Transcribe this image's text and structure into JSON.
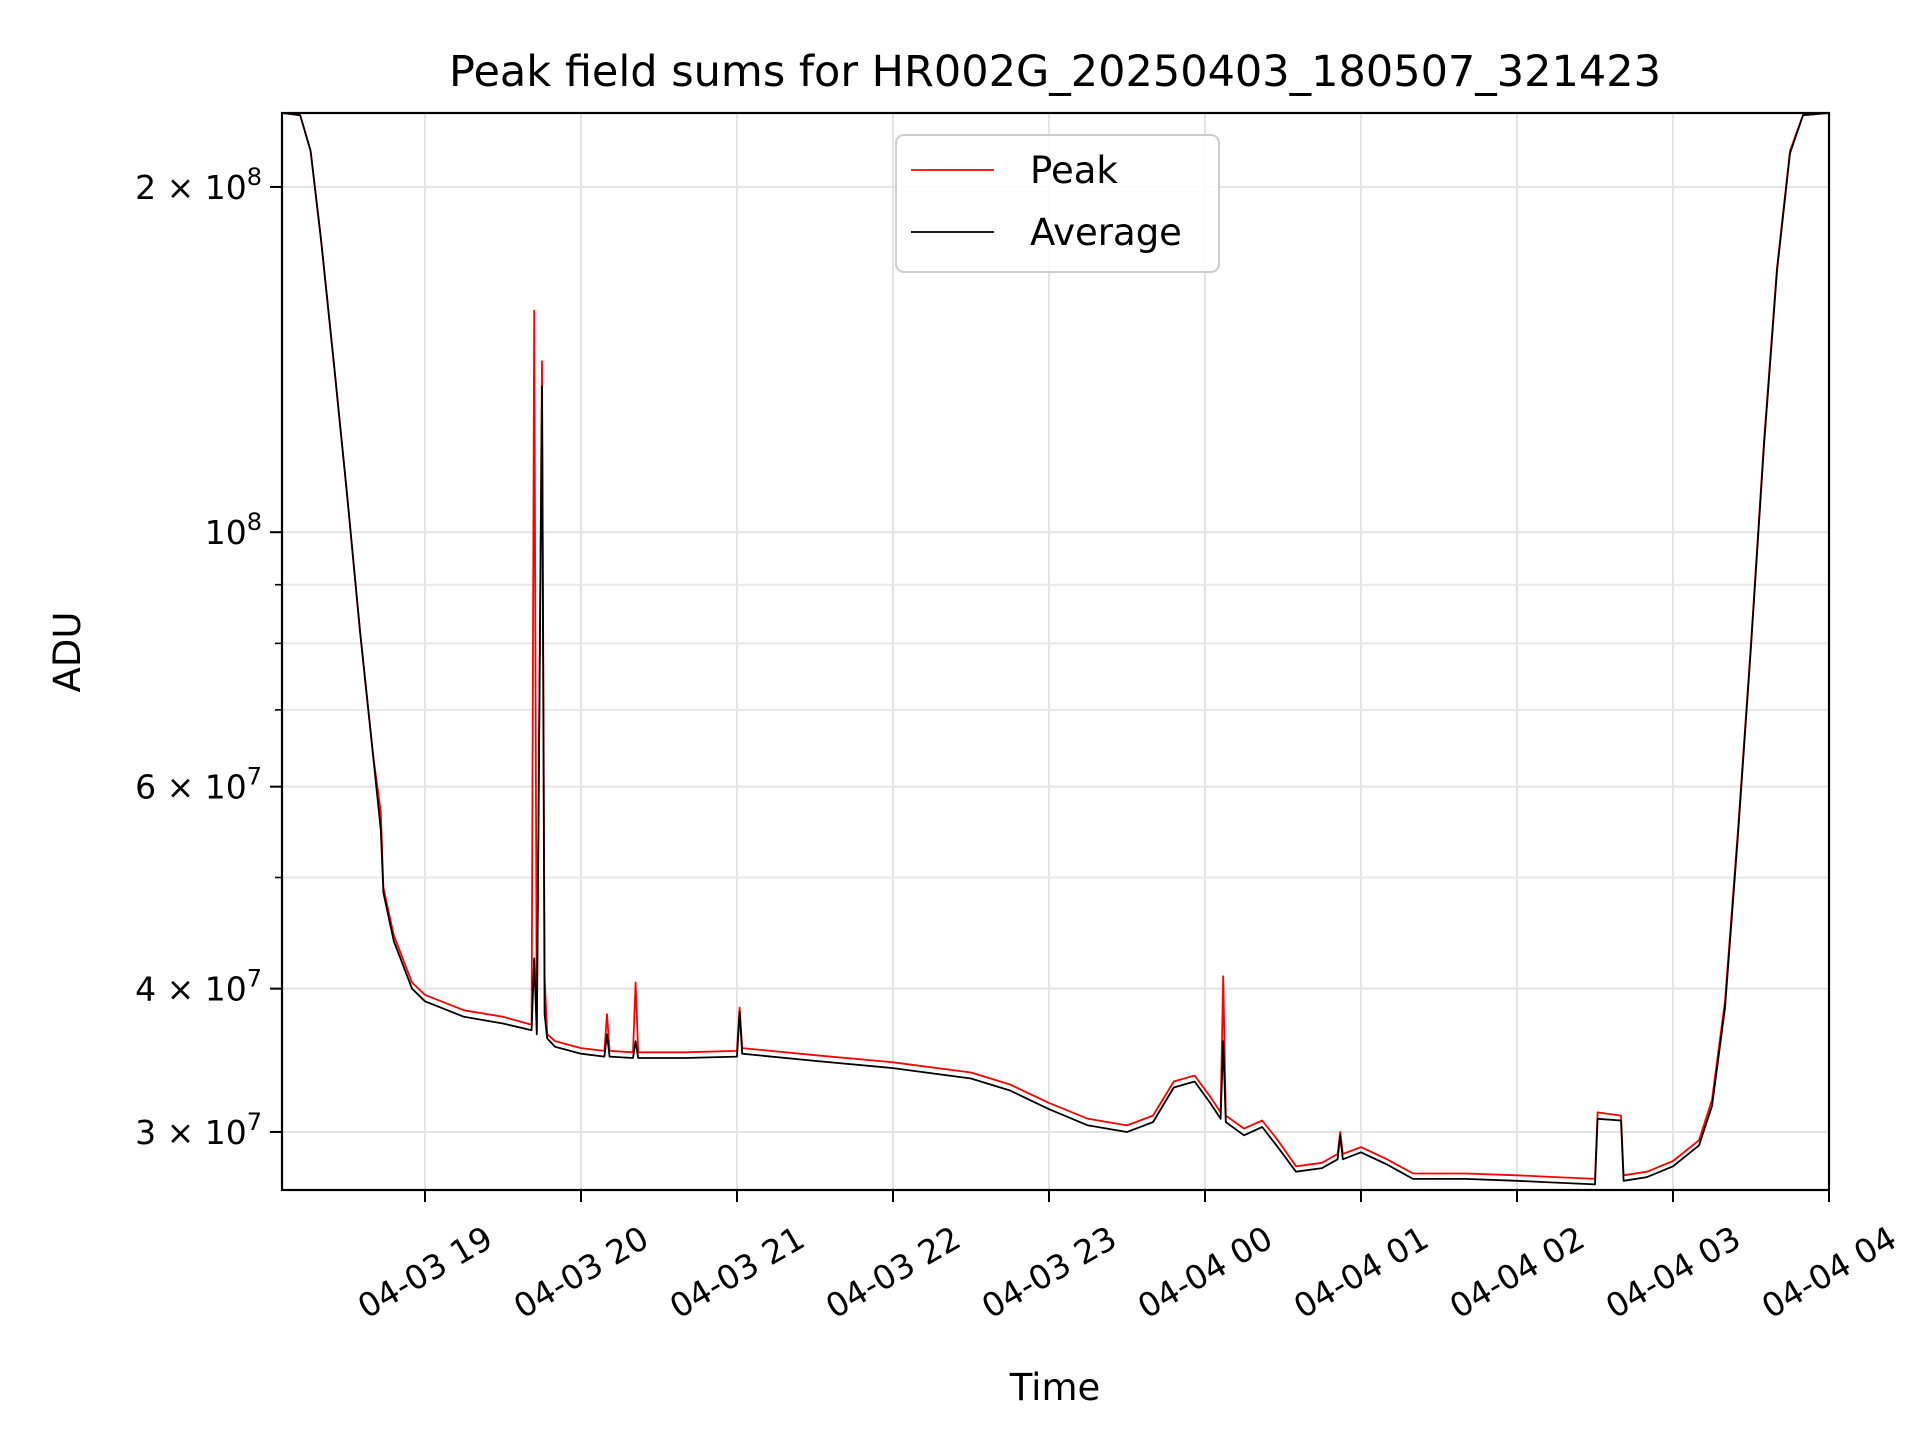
{
  "chart_data": {
    "type": "line",
    "title": "Peak field sums for HR002G_20250403_180507_321423",
    "xlabel": "Time",
    "ylabel": "ADU",
    "y_scale": "log",
    "ylim": [
      26700000,
      232000000
    ],
    "xlim": [
      "2025-04-03 18:05",
      "2025-04-04 04:00"
    ],
    "grid": true,
    "legend": {
      "position": "upper center",
      "entries": [
        "Peak",
        "Average"
      ]
    },
    "colors": {
      "Peak": "#ff0000",
      "Average": "#000000"
    },
    "x_ticks": [
      {
        "t": "2025-04-03 19:00",
        "label": "04-03 19"
      },
      {
        "t": "2025-04-03 20:00",
        "label": "04-03 20"
      },
      {
        "t": "2025-04-03 21:00",
        "label": "04-03 21"
      },
      {
        "t": "2025-04-03 22:00",
        "label": "04-03 22"
      },
      {
        "t": "2025-04-03 23:00",
        "label": "04-03 23"
      },
      {
        "t": "2025-04-04 00:00",
        "label": "04-04 00"
      },
      {
        "t": "2025-04-04 01:00",
        "label": "04-04 01"
      },
      {
        "t": "2025-04-04 02:00",
        "label": "04-04 02"
      },
      {
        "t": "2025-04-04 03:00",
        "label": "04-04 03"
      },
      {
        "t": "2025-04-04 04:00",
        "label": "04-04 04"
      }
    ],
    "y_ticks": [
      {
        "value": 30000000,
        "mant": "3",
        "exp": "7"
      },
      {
        "value": 40000000,
        "mant": "4",
        "exp": "7"
      },
      {
        "value": 60000000,
        "mant": "6",
        "exp": "7"
      },
      {
        "value": 100000000,
        "mant": "",
        "exp": "8"
      },
      {
        "value": 200000000,
        "mant": "2",
        "exp": "8"
      }
    ],
    "y_minor_ticks": [
      50000000,
      70000000,
      80000000,
      90000000
    ],
    "series": [
      {
        "name": "Peak",
        "points": [
          [
            "2025-04-03 18:05",
            232000000
          ],
          [
            "2025-04-03 18:12",
            231000000
          ],
          [
            "2025-04-03 18:16",
            215000000
          ],
          [
            "2025-04-03 18:20",
            180000000
          ],
          [
            "2025-04-03 18:25",
            140000000
          ],
          [
            "2025-04-03 18:30",
            108000000
          ],
          [
            "2025-04-03 18:35",
            82000000
          ],
          [
            "2025-04-03 18:40",
            64000000
          ],
          [
            "2025-04-03 18:43",
            57000000
          ],
          [
            "2025-04-03 18:44",
            49000000
          ],
          [
            "2025-04-03 18:48",
            44500000
          ],
          [
            "2025-04-03 18:55",
            40500000
          ],
          [
            "2025-04-03 19:00",
            39500000
          ],
          [
            "2025-04-03 19:15",
            38300000
          ],
          [
            "2025-04-03 19:30",
            37800000
          ],
          [
            "2025-04-03 19:41",
            37200000
          ],
          [
            "2025-04-03 19:42",
            156000000
          ],
          [
            "2025-04-03 19:43",
            36800000
          ],
          [
            "2025-04-03 19:45",
            141000000
          ],
          [
            "2025-04-03 19:46",
            41000000
          ],
          [
            "2025-04-03 19:47",
            36500000
          ],
          [
            "2025-04-03 19:50",
            36000000
          ],
          [
            "2025-04-03 20:00",
            35500000
          ],
          [
            "2025-04-03 20:09",
            35300000
          ],
          [
            "2025-04-03 20:10",
            38000000
          ],
          [
            "2025-04-03 20:11",
            35300000
          ],
          [
            "2025-04-03 20:20",
            35200000
          ],
          [
            "2025-04-03 20:21",
            40500000
          ],
          [
            "2025-04-03 20:22",
            35200000
          ],
          [
            "2025-04-03 20:40",
            35200000
          ],
          [
            "2025-04-03 21:00",
            35300000
          ],
          [
            "2025-04-03 21:01",
            38500000
          ],
          [
            "2025-04-03 21:02",
            35500000
          ],
          [
            "2025-04-03 21:30",
            35000000
          ],
          [
            "2025-04-03 22:00",
            34500000
          ],
          [
            "2025-04-03 22:30",
            33800000
          ],
          [
            "2025-04-03 22:45",
            33000000
          ],
          [
            "2025-04-03 23:00",
            31800000
          ],
          [
            "2025-04-03 23:15",
            30800000
          ],
          [
            "2025-04-03 23:30",
            30400000
          ],
          [
            "2025-04-03 23:40",
            31000000
          ],
          [
            "2025-04-03 23:48",
            33200000
          ],
          [
            "2025-04-03 23:56",
            33600000
          ],
          [
            "2025-04-04 00:02",
            32200000
          ],
          [
            "2025-04-04 00:06",
            31200000
          ],
          [
            "2025-04-04 00:07",
            41000000
          ],
          [
            "2025-04-04 00:08",
            31000000
          ],
          [
            "2025-04-04 00:15",
            30200000
          ],
          [
            "2025-04-04 00:22",
            30700000
          ],
          [
            "2025-04-04 00:28",
            29500000
          ],
          [
            "2025-04-04 00:35",
            28000000
          ],
          [
            "2025-04-04 00:45",
            28200000
          ],
          [
            "2025-04-04 00:51",
            28700000
          ],
          [
            "2025-04-04 00:52",
            30000000
          ],
          [
            "2025-04-04 00:53",
            28700000
          ],
          [
            "2025-04-04 01:00",
            29100000
          ],
          [
            "2025-04-04 01:10",
            28400000
          ],
          [
            "2025-04-04 01:20",
            27600000
          ],
          [
            "2025-04-04 01:40",
            27600000
          ],
          [
            "2025-04-04 02:00",
            27500000
          ],
          [
            "2025-04-04 02:15",
            27400000
          ],
          [
            "2025-04-04 02:30",
            27300000
          ],
          [
            "2025-04-04 02:31",
            31200000
          ],
          [
            "2025-04-04 02:40",
            31000000
          ],
          [
            "2025-04-04 02:41",
            27500000
          ],
          [
            "2025-04-04 02:50",
            27700000
          ],
          [
            "2025-04-04 03:00",
            28300000
          ],
          [
            "2025-04-04 03:10",
            29500000
          ],
          [
            "2025-04-04 03:15",
            32000000
          ],
          [
            "2025-04-04 03:20",
            39000000
          ],
          [
            "2025-04-04 03:25",
            55000000
          ],
          [
            "2025-04-04 03:30",
            80000000
          ],
          [
            "2025-04-04 03:35",
            120000000
          ],
          [
            "2025-04-04 03:40",
            170000000
          ],
          [
            "2025-04-04 03:45",
            215000000
          ],
          [
            "2025-04-04 03:50",
            231000000
          ],
          [
            "2025-04-04 04:00",
            232000000
          ]
        ]
      },
      {
        "name": "Average",
        "points": [
          [
            "2025-04-03 18:05",
            232000000
          ],
          [
            "2025-04-03 18:12",
            231000000
          ],
          [
            "2025-04-03 18:16",
            215000000
          ],
          [
            "2025-04-03 18:20",
            180000000
          ],
          [
            "2025-04-03 18:25",
            140000000
          ],
          [
            "2025-04-03 18:30",
            108000000
          ],
          [
            "2025-04-03 18:35",
            82000000
          ],
          [
            "2025-04-03 18:40",
            64000000
          ],
          [
            "2025-04-03 18:43",
            55000000
          ],
          [
            "2025-04-03 18:44",
            48500000
          ],
          [
            "2025-04-03 18:48",
            44000000
          ],
          [
            "2025-04-03 18:55",
            40000000
          ],
          [
            "2025-04-03 19:00",
            39000000
          ],
          [
            "2025-04-03 19:15",
            37800000
          ],
          [
            "2025-04-03 19:30",
            37300000
          ],
          [
            "2025-04-03 19:41",
            36800000
          ],
          [
            "2025-04-03 19:42",
            42500000
          ],
          [
            "2025-04-03 19:43",
            36500000
          ],
          [
            "2025-04-03 19:45",
            134000000
          ],
          [
            "2025-04-03 19:46",
            38000000
          ],
          [
            "2025-04-03 19:47",
            36200000
          ],
          [
            "2025-04-03 19:50",
            35600000
          ],
          [
            "2025-04-03 20:00",
            35100000
          ],
          [
            "2025-04-03 20:09",
            34900000
          ],
          [
            "2025-04-03 20:10",
            36500000
          ],
          [
            "2025-04-03 20:11",
            34900000
          ],
          [
            "2025-04-03 20:20",
            34800000
          ],
          [
            "2025-04-03 20:21",
            36000000
          ],
          [
            "2025-04-03 20:22",
            34800000
          ],
          [
            "2025-04-03 20:40",
            34800000
          ],
          [
            "2025-04-03 21:00",
            34900000
          ],
          [
            "2025-04-03 21:01",
            38200000
          ],
          [
            "2025-04-03 21:02",
            35100000
          ],
          [
            "2025-04-03 21:30",
            34600000
          ],
          [
            "2025-04-03 22:00",
            34100000
          ],
          [
            "2025-04-03 22:30",
            33400000
          ],
          [
            "2025-04-03 22:45",
            32600000
          ],
          [
            "2025-04-03 23:00",
            31400000
          ],
          [
            "2025-04-03 23:15",
            30400000
          ],
          [
            "2025-04-03 23:30",
            30000000
          ],
          [
            "2025-04-03 23:40",
            30600000
          ],
          [
            "2025-04-03 23:48",
            32800000
          ],
          [
            "2025-04-03 23:56",
            33200000
          ],
          [
            "2025-04-04 00:02",
            31800000
          ],
          [
            "2025-04-04 00:06",
            30800000
          ],
          [
            "2025-04-04 00:07",
            36000000
          ],
          [
            "2025-04-04 00:08",
            30600000
          ],
          [
            "2025-04-04 00:15",
            29800000
          ],
          [
            "2025-04-04 00:22",
            30300000
          ],
          [
            "2025-04-04 00:28",
            29100000
          ],
          [
            "2025-04-04 00:35",
            27700000
          ],
          [
            "2025-04-04 00:45",
            27900000
          ],
          [
            "2025-04-04 00:51",
            28400000
          ],
          [
            "2025-04-04 00:52",
            29800000
          ],
          [
            "2025-04-04 00:53",
            28400000
          ],
          [
            "2025-04-04 01:00",
            28800000
          ],
          [
            "2025-04-04 01:10",
            28100000
          ],
          [
            "2025-04-04 01:20",
            27300000
          ],
          [
            "2025-04-04 01:40",
            27300000
          ],
          [
            "2025-04-04 02:00",
            27200000
          ],
          [
            "2025-04-04 02:15",
            27100000
          ],
          [
            "2025-04-04 02:30",
            27000000
          ],
          [
            "2025-04-04 02:31",
            30800000
          ],
          [
            "2025-04-04 02:40",
            30700000
          ],
          [
            "2025-04-04 02:41",
            27200000
          ],
          [
            "2025-04-04 02:50",
            27400000
          ],
          [
            "2025-04-04 03:00",
            28000000
          ],
          [
            "2025-04-04 03:10",
            29200000
          ],
          [
            "2025-04-04 03:15",
            31600000
          ],
          [
            "2025-04-04 03:20",
            38500000
          ],
          [
            "2025-04-04 03:25",
            54500000
          ],
          [
            "2025-04-04 03:30",
            79500000
          ],
          [
            "2025-04-04 03:35",
            119000000
          ],
          [
            "2025-04-04 03:40",
            169000000
          ],
          [
            "2025-04-04 03:45",
            214000000
          ],
          [
            "2025-04-04 03:50",
            231000000
          ],
          [
            "2025-04-04 04:00",
            232000000
          ]
        ]
      }
    ]
  }
}
